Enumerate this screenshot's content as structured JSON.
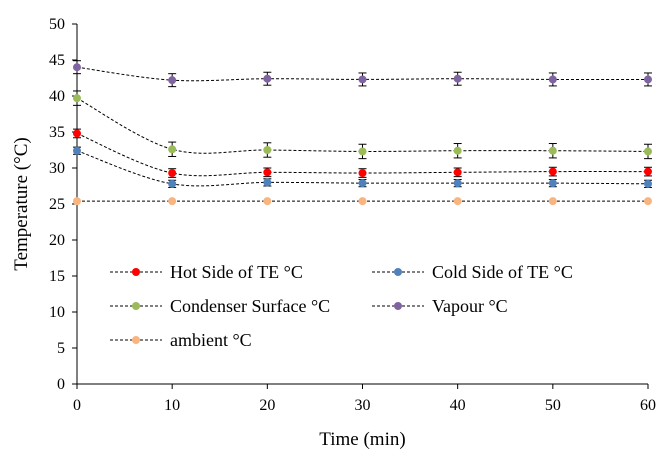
{
  "chart_data": {
    "type": "line",
    "title": "",
    "xlabel": "Time (min)",
    "ylabel": "Temperature (°C)",
    "xlim": [
      0,
      60
    ],
    "ylim": [
      0,
      50
    ],
    "x_ticks": [
      0,
      10,
      20,
      30,
      40,
      50,
      60
    ],
    "y_ticks": [
      0,
      5,
      10,
      15,
      20,
      25,
      30,
      35,
      40,
      45,
      50
    ],
    "grid": false,
    "legend_position": "lower-center inside",
    "x": [
      0,
      10,
      20,
      30,
      40,
      50,
      60
    ],
    "series": [
      {
        "name": "Hot Side of TE °C",
        "color": "#ff0000",
        "values": [
          34.8,
          29.3,
          29.4,
          29.3,
          29.4,
          29.5,
          29.5
        ],
        "error": [
          0.6,
          0.6,
          0.6,
          0.6,
          0.6,
          0.6,
          0.6
        ]
      },
      {
        "name": "Cold Side of TE °C",
        "color": "#4f81bd",
        "values": [
          32.4,
          27.8,
          28.0,
          27.9,
          27.9,
          27.9,
          27.8
        ],
        "error": [
          0.5,
          0.5,
          0.5,
          0.5,
          0.5,
          0.5,
          0.5
        ]
      },
      {
        "name": "Condenser Surface °C",
        "color": "#9bbb59",
        "values": [
          39.7,
          32.6,
          32.5,
          32.3,
          32.4,
          32.4,
          32.3
        ],
        "error": [
          1.0,
          1.0,
          1.0,
          1.0,
          1.0,
          1.0,
          1.0
        ]
      },
      {
        "name": "Vapour °C",
        "color": "#8064a2",
        "values": [
          44.0,
          42.2,
          42.4,
          42.3,
          42.4,
          42.3,
          42.3
        ],
        "error": [
          0.9,
          0.9,
          0.9,
          0.9,
          0.9,
          0.9,
          0.9
        ]
      },
      {
        "name": "ambient °C",
        "color": "#f9b580",
        "values": [
          25.4,
          25.4,
          25.4,
          25.4,
          25.4,
          25.4,
          25.4
        ],
        "error": [
          0,
          0,
          0,
          0,
          0,
          0,
          0
        ]
      }
    ]
  }
}
